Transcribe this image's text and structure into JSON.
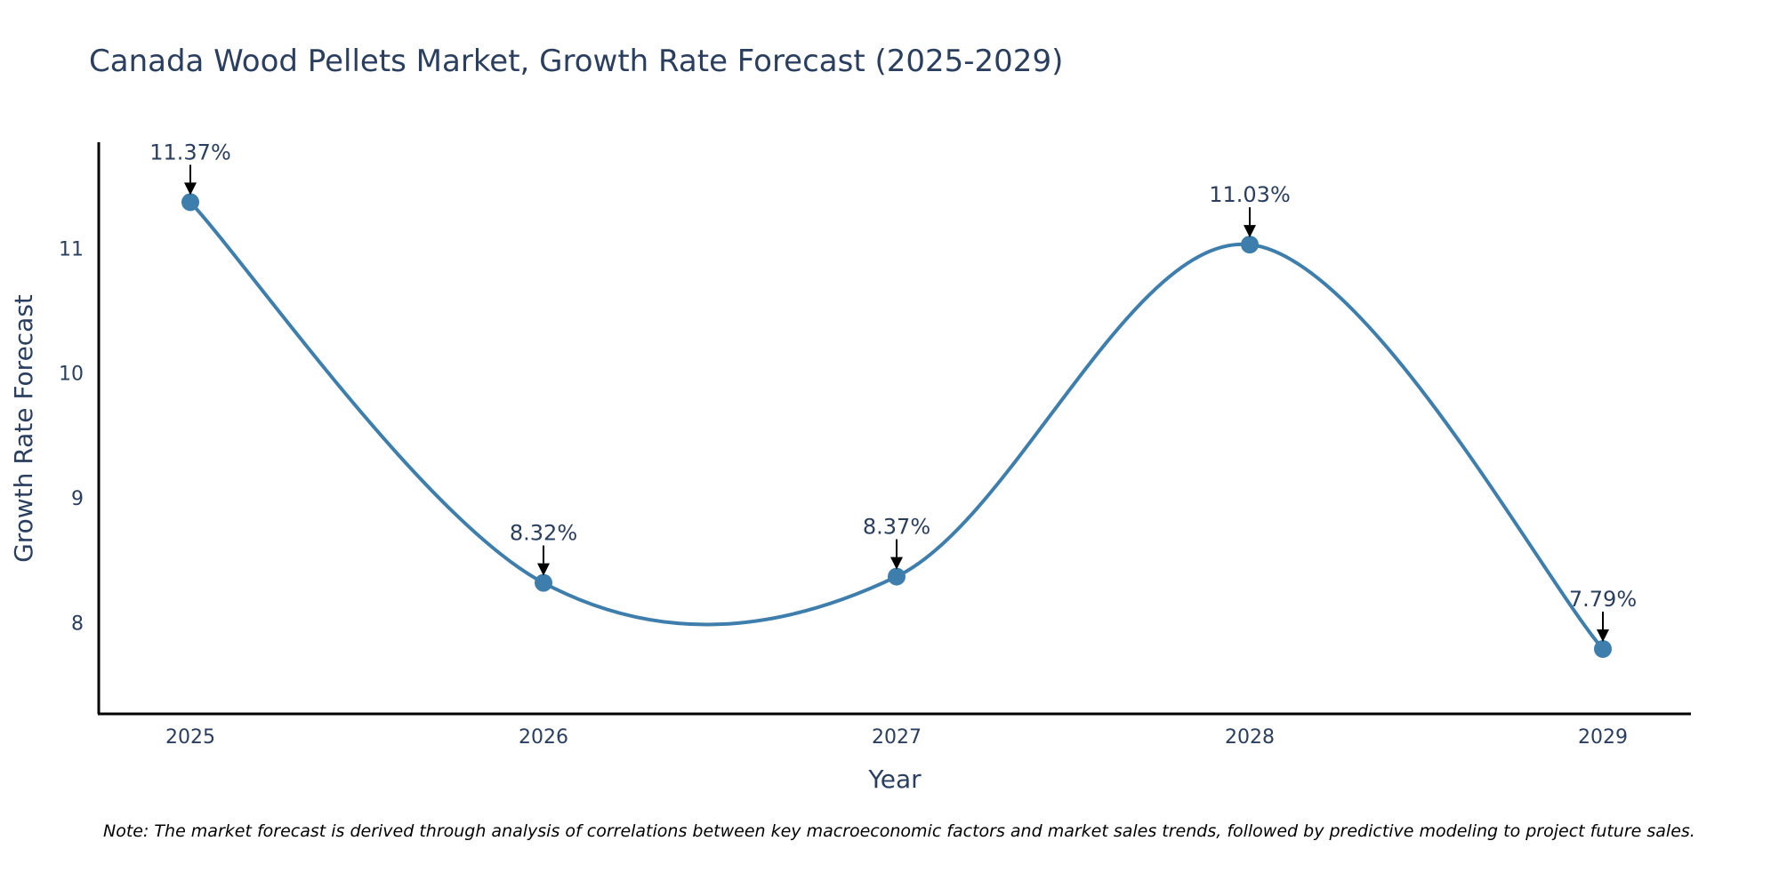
{
  "chart_data": {
    "type": "line",
    "title": "Canada Wood Pellets Market, Growth Rate Forecast (2025-2029)",
    "xlabel": "Year",
    "ylabel": "Growth Rate Forecast",
    "categories": [
      "2025",
      "2026",
      "2027",
      "2028",
      "2029"
    ],
    "values": [
      11.37,
      8.32,
      8.37,
      11.03,
      7.79
    ],
    "data_labels": [
      "11.37%",
      "8.32%",
      "8.37%",
      "11.03%",
      "7.79%"
    ],
    "yticks": [
      8,
      9,
      10,
      11
    ],
    "ylim": [
      7.27,
      11.85
    ],
    "line_shape": "spline",
    "grid": false,
    "note": "Note: The market forecast is derived through analysis of correlations between key macroeconomic factors and market sales trends, followed by predictive modeling to project future sales."
  },
  "colors": {
    "line": "#3d7ead",
    "marker": "#3d7ead",
    "axis": "#000000",
    "text": "#2a3f5f"
  }
}
